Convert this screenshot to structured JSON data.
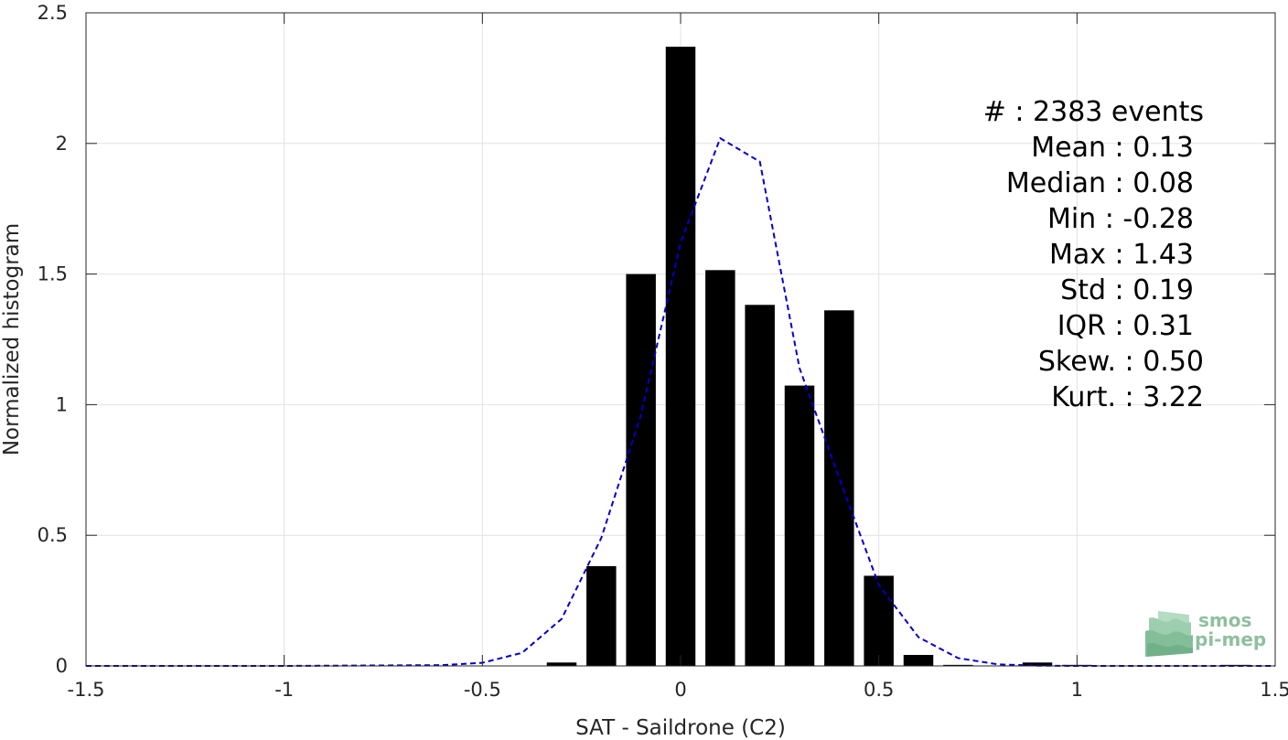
{
  "chart_data": {
    "type": "bar",
    "xlabel": "SAT - Saildrone (C2)",
    "ylabel": "Normalized histogram",
    "xlim": [
      -1.5,
      1.5
    ],
    "ylim": [
      0,
      2.5
    ],
    "xticks": [
      "-1.5",
      "-1",
      "-0.5",
      "0",
      "0.5",
      "1",
      "1.5"
    ],
    "yticks": [
      "0",
      "0.5",
      "1",
      "1.5",
      "2",
      "2.5"
    ],
    "grid": true,
    "bar_width": 0.075,
    "bars": {
      "x": [
        -0.3,
        -0.2,
        -0.1,
        0.0,
        0.1,
        0.2,
        0.3,
        0.4,
        0.5,
        0.6,
        0.7,
        0.9,
        1.0,
        1.4
      ],
      "values": [
        0.013,
        0.382,
        1.5,
        2.37,
        1.515,
        1.382,
        1.073,
        1.361,
        0.345,
        0.042,
        0.004,
        0.013,
        0.004,
        0.004
      ],
      "color": "#000000"
    },
    "fit": {
      "x": [
        -1.5,
        -1.0,
        -0.6,
        -0.5,
        -0.4,
        -0.3,
        -0.2,
        -0.1,
        0.0,
        0.1,
        0.2,
        0.3,
        0.4,
        0.5,
        0.6,
        0.7,
        0.8,
        0.9,
        1.0,
        1.5
      ],
      "values": [
        0.0,
        0.0,
        0.003,
        0.012,
        0.05,
        0.18,
        0.49,
        0.96,
        1.62,
        2.02,
        1.93,
        1.14,
        0.72,
        0.31,
        0.11,
        0.03,
        0.006,
        0.001,
        0.0,
        0.0
      ],
      "color": "#0000cc",
      "style": "dashed"
    },
    "annotations": [
      "#  : 2383 events",
      "Mean : 0.13",
      "Median : 0.08",
      "Min : -0.28",
      "Max : 1.43",
      "Std : 0.19",
      "IQR : 0.31",
      "Skew. : 0.50",
      "Kurt. : 3.22"
    ]
  },
  "logo": {
    "line1": "smos",
    "line2": "pi-mep",
    "color": "#8fbf9f"
  }
}
